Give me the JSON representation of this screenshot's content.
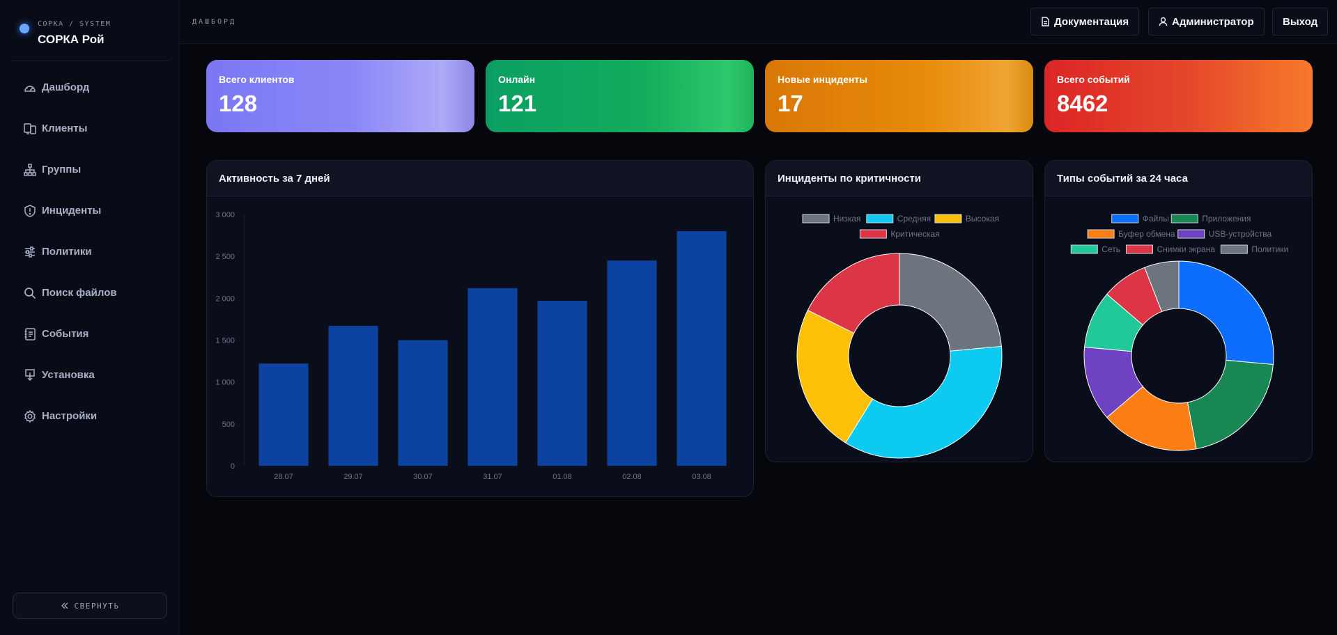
{
  "sidebar": {
    "brand_sub": "СОРКА / SYSTEM",
    "brand_title": "СОРКА Рой",
    "items": [
      {
        "label": "Дашборд",
        "icon": "gauge-icon"
      },
      {
        "label": "Клиенты",
        "icon": "devices-icon"
      },
      {
        "label": "Группы",
        "icon": "hierarchy-icon"
      },
      {
        "label": "Инциденты",
        "icon": "shield-alert-icon"
      },
      {
        "label": "Политики",
        "icon": "sliders-icon"
      },
      {
        "label": "Поиск файлов",
        "icon": "search-icon"
      },
      {
        "label": "События",
        "icon": "journal-icon"
      },
      {
        "label": "Установка",
        "icon": "install-icon"
      },
      {
        "label": "Настройки",
        "icon": "gear-icon"
      }
    ],
    "collapse_label": "СВЕРНУТЬ"
  },
  "header": {
    "page_title": "ДАШБОРД",
    "docs_label": "Документация",
    "user_label": "Администратор",
    "logout_label": "Выход"
  },
  "stats": [
    {
      "label": "Всего клиентов",
      "value": "128"
    },
    {
      "label": "Онлайн",
      "value": "121"
    },
    {
      "label": "Новые инциденты",
      "value": "17"
    },
    {
      "label": "Всего событий",
      "value": "8462"
    }
  ],
  "panels": {
    "activity_title": "Активность за 7 дней",
    "incidents_title": "Инциденты по критичности",
    "events_title": "Типы событий за 24 часа"
  },
  "chart_data": [
    {
      "type": "bar",
      "title": "Активность за 7 дней",
      "categories": [
        "28.07",
        "29.07",
        "30.07",
        "31.07",
        "01.08",
        "02.08",
        "03.08"
      ],
      "values": [
        1220,
        1670,
        1500,
        2120,
        1970,
        2450,
        2800
      ],
      "ylim": [
        0,
        3000
      ],
      "yticks": [
        0,
        500,
        1000,
        1500,
        2000,
        2500,
        3000
      ],
      "ytick_labels": [
        "0",
        "500",
        "1 000",
        "1 500",
        "2 000",
        "2 500",
        "3 000"
      ],
      "color": "#0d43a0",
      "grid": false,
      "legend": "none"
    },
    {
      "type": "pie",
      "title": "Инциденты по критичности",
      "legend": "top",
      "categories": [
        "Низкая",
        "Средняя",
        "Высокая",
        "Критическая"
      ],
      "values": [
        4,
        6,
        4,
        3
      ],
      "colors": [
        "#6c757d",
        "#0dcaf0",
        "#ffc107",
        "#dc3545"
      ]
    },
    {
      "type": "pie",
      "title": "Типы событий за 24 часа",
      "legend": "top",
      "categories": [
        "Файлы",
        "Приложения",
        "Буфер обмена",
        "USB-устройства",
        "Сеть",
        "Снимки экрана",
        "Политики"
      ],
      "values": [
        27,
        21,
        17,
        13,
        10,
        8,
        6
      ],
      "colors": [
        "#0d6efd",
        "#198754",
        "#fd7e14",
        "#6f42c1",
        "#20c997",
        "#dc3545",
        "#6c757d"
      ]
    }
  ]
}
